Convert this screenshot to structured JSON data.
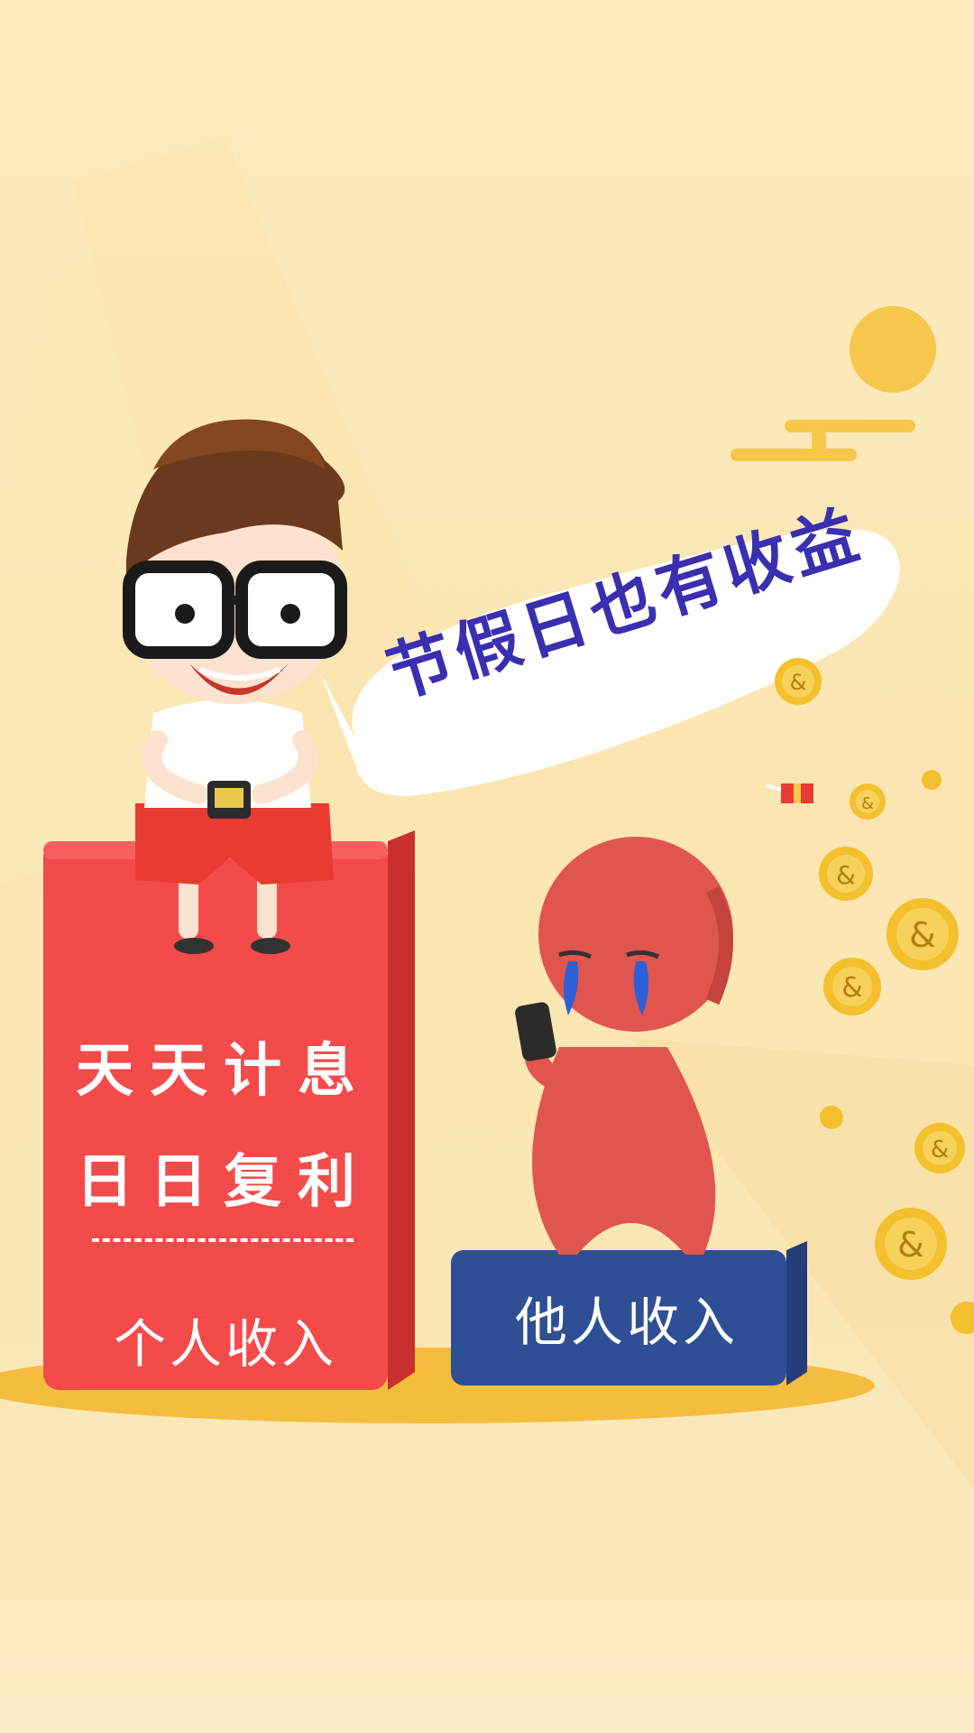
{
  "speech_bubble": {
    "text": "节假日也有收益"
  },
  "red_pedestal": {
    "slogan_line1": "天天计息",
    "slogan_line2": "日日复利",
    "label": "个人收入"
  },
  "blue_pedestal": {
    "label": "他人收入"
  },
  "colors": {
    "background": "#fbe6b3",
    "red_pedestal": "#f34a4a",
    "blue_pedestal": "#2f4f95",
    "bubble_text": "#3a2fb0",
    "coin": "#f4c02e",
    "sad_figure": "#e0564f"
  },
  "icons": [
    "sun-icon",
    "coin-icon",
    "phone-icon",
    "gift-icon"
  ]
}
